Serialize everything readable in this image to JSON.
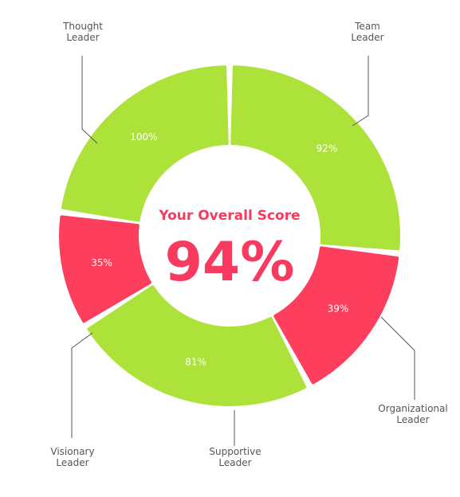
{
  "chart_data": {
    "type": "pie",
    "variant": "donut",
    "title": "Your Overall Score",
    "overall_score": "94%",
    "categories": [
      [
        "Team",
        "Leader"
      ],
      [
        "Organizational",
        "Leader"
      ],
      [
        "Supportive",
        "Leader"
      ],
      [
        "Visionary",
        "Leader"
      ],
      [
        "Thought",
        "Leader"
      ]
    ],
    "values": [
      92,
      39,
      81,
      35,
      100
    ],
    "value_labels": [
      "92%",
      "39%",
      "81%",
      "35%",
      "100%"
    ],
    "segment_status": [
      "high",
      "low",
      "high",
      "low",
      "high"
    ]
  },
  "colors": {
    "high": "#ade23a",
    "low": "#fd3e5d",
    "accent": "#f83a5e",
    "leader_line": "#555555",
    "label_text": "#555555",
    "segment_text": "#ffffff"
  }
}
